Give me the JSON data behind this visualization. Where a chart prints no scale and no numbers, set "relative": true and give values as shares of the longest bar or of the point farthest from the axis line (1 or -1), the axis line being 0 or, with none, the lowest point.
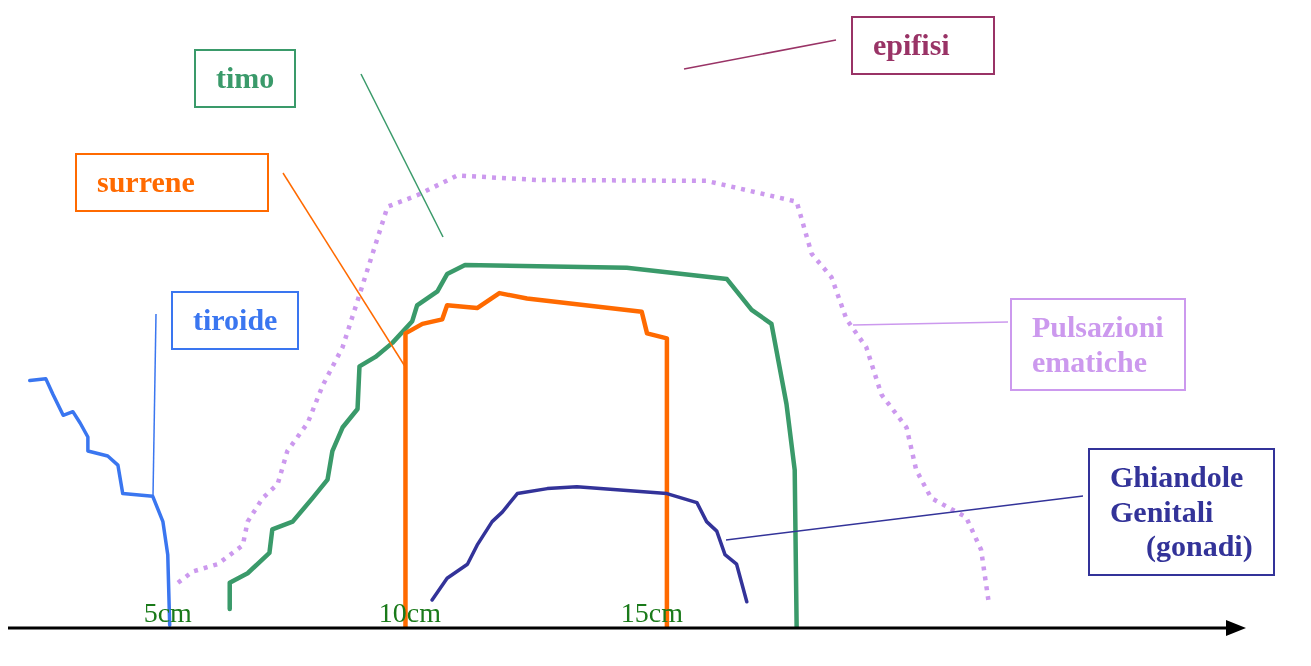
{
  "chart_data": {
    "type": "line",
    "relative": true,
    "marker": "none",
    "xlim": [
      1.7,
      26.9
    ],
    "xticks": [
      {
        "value": 5,
        "label": "5cm"
      },
      {
        "value": 10,
        "label": "10cm"
      },
      {
        "value": 15,
        "label": "15cm"
      }
    ],
    "annotations": [
      "epifisi"
    ],
    "series": [
      {
        "name": "tiroide",
        "color": "#3a76f0",
        "x": [
          2.15,
          2.48,
          2.63,
          2.84,
          3.04,
          3.19,
          3.35,
          3.35,
          3.76,
          3.97,
          4.07,
          4.69,
          4.9,
          5.0,
          5.04
        ],
        "values": [
          0.547,
          0.551,
          0.516,
          0.47,
          0.478,
          0.453,
          0.422,
          0.391,
          0.38,
          0.36,
          0.297,
          0.291,
          0.235,
          0.162,
          0.006
        ]
      },
      {
        "name": "timo",
        "color": "#3a9a6a",
        "x": [
          6.28,
          6.28,
          6.65,
          7.1,
          7.16,
          7.58,
          7.99,
          8.3,
          8.4,
          8.61,
          8.92,
          8.96,
          9.29,
          9.64,
          10.05,
          10.15,
          10.57,
          10.77,
          11.14,
          14.48,
          16.55,
          17.06,
          17.47,
          17.78,
          17.95,
          17.99
        ],
        "values": [
          0.042,
          0.1,
          0.121,
          0.166,
          0.218,
          0.235,
          0.287,
          0.328,
          0.391,
          0.443,
          0.484,
          0.578,
          0.599,
          0.63,
          0.678,
          0.713,
          0.744,
          0.782,
          0.802,
          0.796,
          0.771,
          0.703,
          0.672,
          0.495,
          0.349,
          0
        ]
      },
      {
        "name": "surrene",
        "color": "#ff6a00",
        "x": [
          9.91,
          9.91,
          10.26,
          10.67,
          10.77,
          11.39,
          11.85,
          12.42,
          14.79,
          14.9,
          15.31,
          15.31
        ],
        "values": [
          0,
          0.651,
          0.672,
          0.682,
          0.713,
          0.707,
          0.74,
          0.728,
          0.699,
          0.651,
          0.64,
          0
        ]
      },
      {
        "name": "Pulsazioni ematiche",
        "color": "#cc99ee",
        "line_style": "dotted",
        "x": [
          5.21,
          5.52,
          6.03,
          6.55,
          6.65,
          6.96,
          7.27,
          7.47,
          7.89,
          8.2,
          8.61,
          8.92,
          9.23,
          9.54,
          10.15,
          10.98,
          12.63,
          16.13,
          17.99,
          18.3,
          18.71,
          19.02,
          19.43,
          19.74,
          20.26,
          20.46,
          20.77,
          21.49,
          21.8,
          21.95
        ],
        "values": [
          0.1,
          0.125,
          0.141,
          0.183,
          0.235,
          0.287,
          0.318,
          0.391,
          0.453,
          0.536,
          0.62,
          0.723,
          0.827,
          0.931,
          0.956,
          1,
          0.99,
          0.988,
          0.942,
          0.827,
          0.775,
          0.682,
          0.62,
          0.516,
          0.443,
          0.349,
          0.287,
          0.245,
          0.173,
          0.062
        ]
      },
      {
        "name": "Ghiandole Genitali (gonadi)",
        "color": "#333399",
        "x": [
          10.46,
          10.77,
          11.19,
          11.39,
          11.7,
          11.91,
          12.22,
          12.84,
          13.45,
          15.31,
          15.93,
          16.13,
          16.34,
          16.51,
          16.75,
          16.96
        ],
        "values": [
          0.062,
          0.11,
          0.141,
          0.183,
          0.235,
          0.256,
          0.297,
          0.308,
          0.312,
          0.297,
          0.277,
          0.235,
          0.214,
          0.162,
          0.141,
          0.058
        ]
      }
    ]
  }
}
